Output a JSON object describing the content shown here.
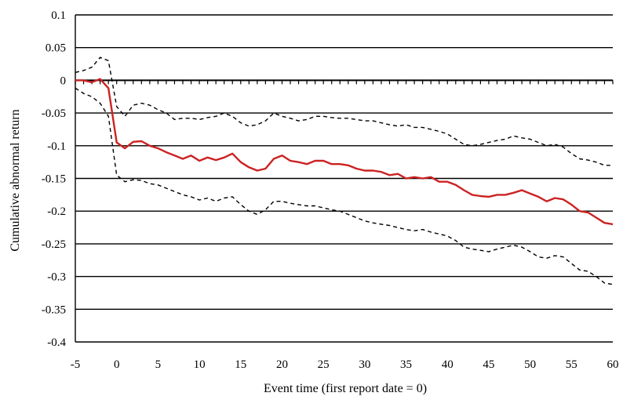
{
  "chart_data": {
    "type": "line",
    "title": "",
    "xlabel": "Event time (first report date = 0)",
    "ylabel": "Cumulative abnormal return",
    "xlim": [
      -5,
      60
    ],
    "ylim": [
      -0.4,
      0.1
    ],
    "grid": true,
    "legend": "none",
    "x_ticks": [
      "-5",
      "0",
      "5",
      "10",
      "15",
      "20",
      "25",
      "30",
      "35",
      "40",
      "45",
      "50",
      "55",
      "60"
    ],
    "y_ticks": [
      "0.1",
      "0.05",
      "0",
      "-0.05",
      "-0.1",
      "-0.15",
      "-0.2",
      "-0.25",
      "-0.3",
      "-0.35",
      "-0.4"
    ],
    "series": [
      {
        "color": "#cc2222",
        "style": "solid",
        "x": [
          -5,
          -4,
          -3,
          -2,
          -1,
          0,
          1,
          2,
          3,
          4,
          5,
          6,
          7,
          8,
          9,
          10,
          11,
          12,
          13,
          14,
          15,
          16,
          17,
          18,
          19,
          20,
          21,
          22,
          23,
          24,
          25,
          26,
          27,
          28,
          29,
          30,
          31,
          32,
          33,
          34,
          35,
          36,
          37,
          38,
          39,
          40,
          41,
          42,
          43,
          44,
          45,
          46,
          47,
          48,
          49,
          50,
          51,
          52,
          53,
          54,
          55,
          56,
          57,
          58,
          59,
          60
        ],
        "values": [
          0,
          0,
          -0.003,
          0.002,
          -0.012,
          -0.095,
          -0.104,
          -0.094,
          -0.093,
          -0.1,
          -0.104,
          -0.11,
          -0.115,
          -0.12,
          -0.115,
          -0.123,
          -0.118,
          -0.122,
          -0.118,
          -0.112,
          -0.125,
          -0.133,
          -0.138,
          -0.135,
          -0.12,
          -0.115,
          -0.123,
          -0.125,
          -0.128,
          -0.123,
          -0.123,
          -0.128,
          -0.128,
          -0.13,
          -0.135,
          -0.138,
          -0.138,
          -0.14,
          -0.145,
          -0.143,
          -0.15,
          -0.148,
          -0.15,
          -0.148,
          -0.155,
          -0.155,
          -0.16,
          -0.168,
          -0.175,
          -0.177,
          -0.178,
          -0.175,
          -0.175,
          -0.172,
          -0.168,
          -0.173,
          -0.178,
          -0.185,
          -0.18,
          -0.182,
          -0.19,
          -0.2,
          -0.202,
          -0.21,
          -0.218,
          -0.22
        ]
      },
      {
        "color": "#000000",
        "style": "dashed",
        "x": [
          -5,
          -4,
          -3,
          -2,
          -1,
          0,
          1,
          2,
          3,
          4,
          5,
          6,
          7,
          8,
          9,
          10,
          11,
          12,
          13,
          14,
          15,
          16,
          17,
          18,
          19,
          20,
          21,
          22,
          23,
          24,
          25,
          26,
          27,
          28,
          29,
          30,
          31,
          32,
          33,
          34,
          35,
          36,
          37,
          38,
          39,
          40,
          41,
          42,
          43,
          44,
          45,
          46,
          47,
          48,
          49,
          50,
          51,
          52,
          53,
          54,
          55,
          56,
          57,
          58,
          59,
          60
        ],
        "values": [
          0.012,
          0.015,
          0.02,
          0.035,
          0.03,
          -0.04,
          -0.055,
          -0.038,
          -0.035,
          -0.038,
          -0.045,
          -0.05,
          -0.06,
          -0.058,
          -0.058,
          -0.06,
          -0.057,
          -0.055,
          -0.05,
          -0.055,
          -0.065,
          -0.07,
          -0.068,
          -0.062,
          -0.05,
          -0.055,
          -0.058,
          -0.062,
          -0.06,
          -0.055,
          -0.055,
          -0.057,
          -0.058,
          -0.058,
          -0.06,
          -0.062,
          -0.062,
          -0.065,
          -0.068,
          -0.07,
          -0.068,
          -0.072,
          -0.072,
          -0.075,
          -0.078,
          -0.082,
          -0.09,
          -0.098,
          -0.1,
          -0.098,
          -0.095,
          -0.092,
          -0.09,
          -0.085,
          -0.088,
          -0.09,
          -0.095,
          -0.1,
          -0.098,
          -0.102,
          -0.112,
          -0.12,
          -0.122,
          -0.125,
          -0.13,
          -0.13
        ]
      },
      {
        "color": "#000000",
        "style": "dashed",
        "x": [
          -5,
          -4,
          -3,
          -2,
          -1,
          0,
          1,
          2,
          3,
          4,
          5,
          6,
          7,
          8,
          9,
          10,
          11,
          12,
          13,
          14,
          15,
          16,
          17,
          18,
          19,
          20,
          21,
          22,
          23,
          24,
          25,
          26,
          27,
          28,
          29,
          30,
          31,
          32,
          33,
          34,
          35,
          36,
          37,
          38,
          39,
          40,
          41,
          42,
          43,
          44,
          45,
          46,
          47,
          48,
          49,
          50,
          51,
          52,
          53,
          54,
          55,
          56,
          57,
          58,
          59,
          60
        ],
        "values": [
          -0.012,
          -0.02,
          -0.025,
          -0.035,
          -0.055,
          -0.145,
          -0.155,
          -0.152,
          -0.153,
          -0.158,
          -0.16,
          -0.165,
          -0.17,
          -0.175,
          -0.178,
          -0.183,
          -0.18,
          -0.185,
          -0.18,
          -0.178,
          -0.19,
          -0.2,
          -0.205,
          -0.198,
          -0.185,
          -0.185,
          -0.188,
          -0.19,
          -0.192,
          -0.192,
          -0.195,
          -0.198,
          -0.2,
          -0.205,
          -0.21,
          -0.215,
          -0.218,
          -0.22,
          -0.222,
          -0.225,
          -0.228,
          -0.23,
          -0.228,
          -0.232,
          -0.235,
          -0.238,
          -0.245,
          -0.255,
          -0.258,
          -0.26,
          -0.262,
          -0.258,
          -0.255,
          -0.252,
          -0.255,
          -0.262,
          -0.27,
          -0.272,
          -0.268,
          -0.27,
          -0.28,
          -0.29,
          -0.292,
          -0.3,
          -0.31,
          -0.312
        ]
      }
    ]
  }
}
